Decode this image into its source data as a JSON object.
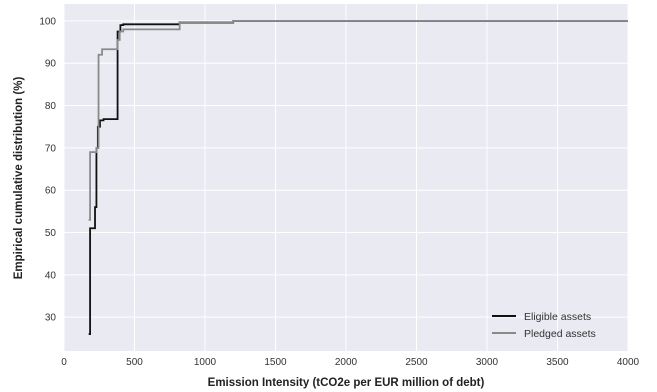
{
  "chart_data": {
    "type": "line",
    "title": "",
    "xlabel": "Emission Intensity (tCO2e per EUR million of debt)",
    "ylabel": "Empirical cumulative distribution (%)",
    "xlim": [
      0,
      4000
    ],
    "ylim": [
      22,
      104
    ],
    "xticks": [
      0,
      500,
      1000,
      1500,
      2000,
      2500,
      3000,
      3500,
      4000
    ],
    "yticks": [
      30,
      40,
      50,
      60,
      70,
      80,
      90,
      100
    ],
    "grid": true,
    "legend_position": "bottom-right",
    "step": true,
    "series": [
      {
        "name": "Eligible assets",
        "color": "#111111",
        "x": [
          175,
          185,
          220,
          230,
          240,
          255,
          280,
          380,
          400,
          420,
          820,
          1200,
          4000
        ],
        "y": [
          26,
          51,
          56,
          70,
          75,
          76.5,
          76.8,
          97.5,
          99,
          99.2,
          99.6,
          100,
          100
        ]
      },
      {
        "name": "Pledged assets",
        "color": "#8a8a8a",
        "x": [
          175,
          185,
          230,
          245,
          270,
          380,
          395,
          420,
          820,
          1200,
          4000
        ],
        "y": [
          53,
          69,
          70,
          92,
          93.3,
          95.5,
          97.5,
          98,
          99.7,
          100,
          100
        ]
      }
    ]
  }
}
